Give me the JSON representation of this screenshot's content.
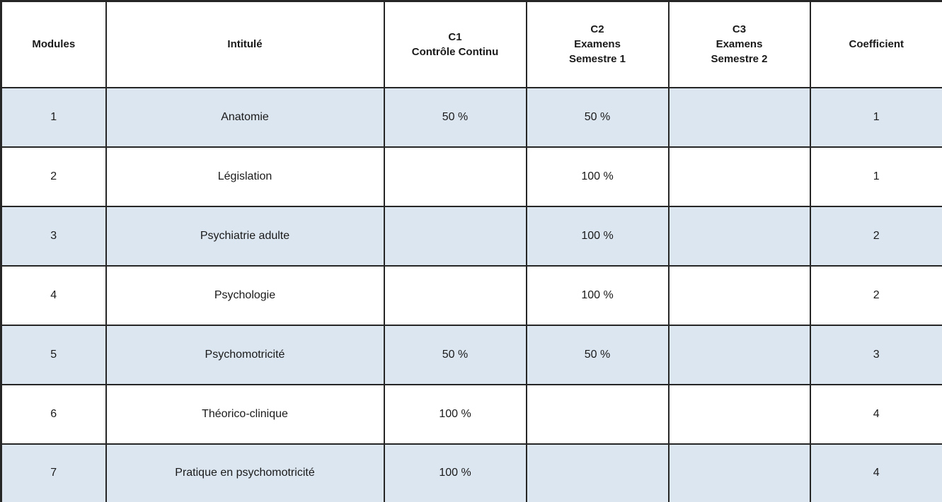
{
  "document": {
    "kind": "grading-scheme-table",
    "language": "fr"
  },
  "colors": {
    "row_shade": "#dce6f1",
    "row_plain": "#ffffff",
    "border": "#262626",
    "text": "#1a1a1a"
  },
  "table": {
    "columns": [
      {
        "id": "module",
        "header_lines": [
          "Modules"
        ]
      },
      {
        "id": "intitule",
        "header_lines": [
          "Intitulé"
        ]
      },
      {
        "id": "c1",
        "header_lines": [
          "C1",
          "Contrôle Continu"
        ]
      },
      {
        "id": "c2",
        "header_lines": [
          "C2",
          "Examens",
          "Semestre 1"
        ]
      },
      {
        "id": "c3",
        "header_lines": [
          "C3",
          "Examens",
          "Semestre 2"
        ]
      },
      {
        "id": "coefficient",
        "header_lines": [
          "Coefficient"
        ]
      }
    ],
    "rows": [
      {
        "shaded": true,
        "cells": [
          "1",
          "Anatomie",
          "50 %",
          "50 %",
          "",
          "1"
        ]
      },
      {
        "shaded": false,
        "cells": [
          "2",
          "Législation",
          "",
          "100 %",
          "",
          "1"
        ]
      },
      {
        "shaded": true,
        "cells": [
          "3",
          "Psychiatrie adulte",
          "",
          "100 %",
          "",
          "2"
        ]
      },
      {
        "shaded": false,
        "cells": [
          "4",
          "Psychologie",
          "",
          "100 %",
          "",
          "2"
        ]
      },
      {
        "shaded": true,
        "cells": [
          "5",
          "Psychomotricité",
          "50 %",
          "50 %",
          "",
          "3"
        ]
      },
      {
        "shaded": false,
        "cells": [
          "6",
          "Théorico-clinique",
          "100 %",
          "",
          "",
          "4"
        ]
      },
      {
        "shaded": true,
        "cells": [
          "7",
          "Pratique en psychomotricité",
          "100 %",
          "",
          "",
          "4"
        ]
      }
    ]
  }
}
